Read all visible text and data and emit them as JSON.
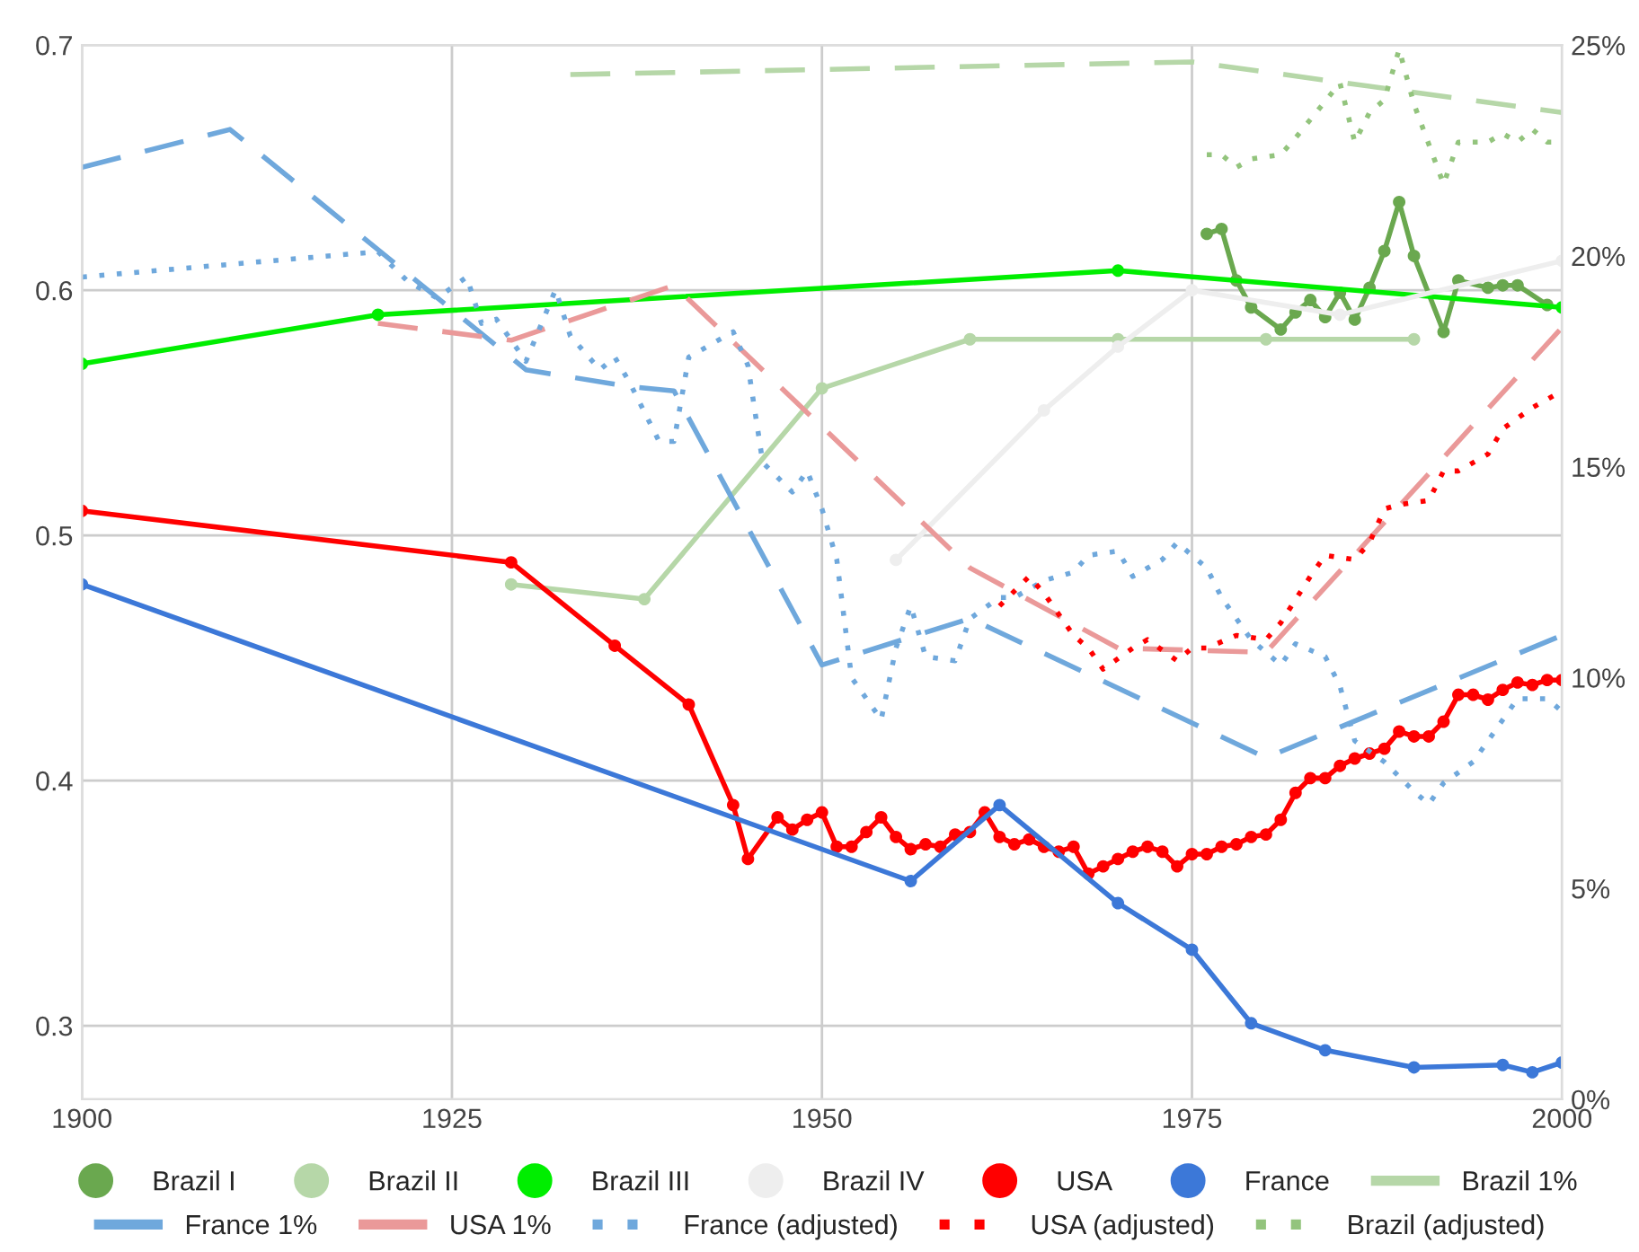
{
  "chart_data": {
    "type": "line",
    "xlim": [
      1900,
      2000
    ],
    "xticks": [
      1900,
      1925,
      1950,
      1975,
      2000
    ],
    "ylim": [
      0.27,
      0.7
    ],
    "yticks": [
      0.3,
      0.4,
      0.5,
      0.6,
      0.7
    ],
    "y2lim": [
      0,
      25
    ],
    "y2ticks": [
      {
        "value": 0,
        "label": "0%"
      },
      {
        "value": 5,
        "label": "5%"
      },
      {
        "value": 10,
        "label": "10%"
      },
      {
        "value": 15,
        "label": "15%"
      },
      {
        "value": 20,
        "label": "20%"
      },
      {
        "value": 25,
        "label": "25%"
      }
    ],
    "grid": true,
    "legend": "bottom",
    "series": [
      {
        "name": "Brazil I",
        "color": "#6aa84f",
        "marker": "circle",
        "line_style": "solid",
        "x": [
          1976,
          1977,
          1978,
          1979,
          1981,
          1982,
          1983,
          1984,
          1985,
          1986,
          1987,
          1988,
          1989,
          1990,
          1992,
          1993,
          1995,
          1996,
          1997,
          1999
        ],
        "values": [
          0.623,
          0.625,
          0.604,
          0.593,
          0.584,
          0.591,
          0.596,
          0.589,
          0.599,
          0.588,
          0.601,
          0.616,
          0.636,
          0.614,
          0.583,
          0.604,
          0.601,
          0.602,
          0.602,
          0.594
        ]
      },
      {
        "name": "Brazil II",
        "color": "#b6d7a8",
        "marker": "circle",
        "line_style": "solid",
        "x": [
          1929,
          1938,
          1950,
          1960,
          1970,
          1980,
          1990
        ],
        "values": [
          0.48,
          0.474,
          0.56,
          0.58,
          0.58,
          0.58,
          0.58
        ]
      },
      {
        "name": "Brazil III",
        "color": "#00ee00",
        "marker": "circle",
        "line_style": "solid",
        "x": [
          1900,
          1920,
          1970,
          2000
        ],
        "values": [
          0.57,
          0.59,
          0.608,
          0.593
        ]
      },
      {
        "name": "Brazil IV",
        "color": "#eeeeee",
        "marker": "circle",
        "line_style": "solid",
        "x": [
          1955,
          1965,
          1970,
          1975,
          1985,
          2000
        ],
        "values": [
          0.49,
          0.551,
          0.577,
          0.6,
          0.59,
          0.612
        ]
      },
      {
        "name": "USA",
        "color": "#ff0000",
        "marker": "circle",
        "line_style": "solid",
        "x": [
          1900,
          1929,
          1936,
          1941,
          1944,
          1945,
          1947,
          1948,
          1949,
          1950,
          1951,
          1952,
          1953,
          1954,
          1955,
          1956,
          1957,
          1958,
          1959,
          1960,
          1961,
          1962,
          1963,
          1964,
          1965,
          1966,
          1967,
          1968,
          1969,
          1970,
          1971,
          1972,
          1973,
          1974,
          1975,
          1976,
          1977,
          1978,
          1979,
          1980,
          1981,
          1982,
          1983,
          1984,
          1985,
          1986,
          1987,
          1988,
          1989,
          1990,
          1991,
          1992,
          1993,
          1994,
          1995,
          1996,
          1997,
          1998,
          1999,
          2000
        ],
        "values": [
          0.51,
          0.489,
          0.455,
          0.431,
          0.39,
          0.368,
          0.385,
          0.38,
          0.384,
          0.387,
          0.373,
          0.373,
          0.379,
          0.385,
          0.377,
          0.372,
          0.374,
          0.373,
          0.378,
          0.379,
          0.387,
          0.377,
          0.374,
          0.376,
          0.373,
          0.371,
          0.373,
          0.362,
          0.365,
          0.368,
          0.371,
          0.373,
          0.371,
          0.365,
          0.37,
          0.37,
          0.373,
          0.374,
          0.377,
          0.378,
          0.384,
          0.395,
          0.401,
          0.401,
          0.406,
          0.409,
          0.411,
          0.413,
          0.42,
          0.418,
          0.418,
          0.424,
          0.435,
          0.435,
          0.433,
          0.437,
          0.44,
          0.439,
          0.441,
          0.441
        ]
      },
      {
        "name": "France",
        "color": "#3c78d8",
        "marker": "circle",
        "line_style": "solid",
        "x": [
          1900,
          1956,
          1962,
          1970,
          1975,
          1979,
          1984,
          1990,
          1996,
          1998,
          2000
        ],
        "values": [
          0.48,
          0.359,
          0.39,
          0.35,
          0.331,
          0.301,
          0.29,
          0.283,
          0.284,
          0.281,
          0.285
        ]
      },
      {
        "name": "Brazil 1%",
        "color": "#b6d7a8",
        "axis": "y2",
        "marker": "none",
        "line_style": "dashed",
        "x": [
          1933,
          1975,
          2000
        ],
        "values": [
          24.3,
          24.6,
          23.4
        ]
      },
      {
        "name": "France 1%",
        "color": "#6fa8dc",
        "axis": "y2",
        "marker": "none",
        "line_style": "dashed",
        "x": [
          1900,
          1910,
          1930,
          1937,
          1940,
          1950,
          1960,
          1980,
          2000
        ],
        "values": [
          22.1,
          23.0,
          17.3,
          16.9,
          16.8,
          10.3,
          11.4,
          8.1,
          11.0
        ]
      },
      {
        "name": "USA 1%",
        "color": "#ea9999",
        "axis": "y2",
        "marker": "none",
        "line_style": "dashed",
        "x": [
          1920,
          1929,
          1940,
          1960,
          1970,
          1980,
          2000
        ],
        "values": [
          18.4,
          18.0,
          19.3,
          12.6,
          10.7,
          10.6,
          18.3
        ]
      },
      {
        "name": "France (adjusted)",
        "color": "#6fa8dc",
        "axis": "y2",
        "marker": "none",
        "line_style": "dotted",
        "x": [
          1900,
          1920,
          1922,
          1924,
          1926,
          1927,
          1928,
          1930,
          1932,
          1933,
          1935,
          1936,
          1937,
          1939,
          1940,
          1941,
          1944,
          1945,
          1946,
          1948,
          1949,
          1950,
          1951,
          1952,
          1954,
          1955,
          1956,
          1957,
          1959,
          1960,
          1962,
          1963,
          1965,
          1967,
          1968,
          1970,
          1971,
          1973,
          1974,
          1976,
          1977,
          1979,
          1981,
          1982,
          1984,
          1985,
          1986,
          1988,
          1990,
          1991,
          1992,
          1994,
          1996,
          1997,
          1999,
          2000
        ],
        "values": [
          19.5,
          20.1,
          19.4,
          19.0,
          19.5,
          18.4,
          18.5,
          17.5,
          19.2,
          18.1,
          17.3,
          17.6,
          17.0,
          15.6,
          15.6,
          17.6,
          18.2,
          17.4,
          15.1,
          14.4,
          14.9,
          14.0,
          12.8,
          10.0,
          9.0,
          10.7,
          11.7,
          10.5,
          10.4,
          11.4,
          11.9,
          11.9,
          12.3,
          12.5,
          12.9,
          13.0,
          12.4,
          12.8,
          13.2,
          12.6,
          11.9,
          10.9,
          10.3,
          10.8,
          10.5,
          9.8,
          8.5,
          8.0,
          7.3,
          7.0,
          7.5,
          8.0,
          9.0,
          9.5,
          9.5,
          9.2
        ]
      },
      {
        "name": "USA (adjusted)",
        "color": "#ff0000",
        "axis": "y2",
        "marker": "none",
        "line_style": "dotted",
        "x": [
          1962,
          1964,
          1965,
          1967,
          1968,
          1969,
          1971,
          1972,
          1974,
          1975,
          1976,
          1978,
          1980,
          1981,
          1983,
          1984,
          1986,
          1987,
          1988,
          1989,
          1991,
          1992,
          1993,
          1995,
          1996,
          1998,
          2000
        ],
        "values": [
          11.7,
          12.4,
          12.0,
          11.0,
          10.7,
          10.2,
          10.7,
          10.9,
          10.4,
          10.7,
          10.7,
          11.0,
          10.9,
          11.3,
          12.4,
          12.9,
          12.8,
          13.2,
          14.0,
          14.1,
          14.2,
          14.9,
          14.9,
          15.3,
          15.9,
          16.4,
          16.8
        ]
      },
      {
        "name": "Brazil (adjusted)",
        "color": "#93c47d",
        "axis": "y2",
        "marker": "none",
        "line_style": "dotted",
        "x": [
          1976,
          1977,
          1978,
          1979,
          1981,
          1982,
          1985,
          1986,
          1987,
          1988,
          1989,
          1990,
          1992,
          1993,
          1995,
          1996,
          1997,
          1998,
          1999,
          2000
        ],
        "values": [
          22.4,
          22.4,
          22.1,
          22.3,
          22.4,
          22.8,
          24.1,
          22.7,
          23.4,
          23.7,
          24.9,
          23.6,
          21.7,
          22.7,
          22.7,
          22.9,
          22.7,
          23.0,
          22.7,
          22.7
        ]
      }
    ]
  }
}
